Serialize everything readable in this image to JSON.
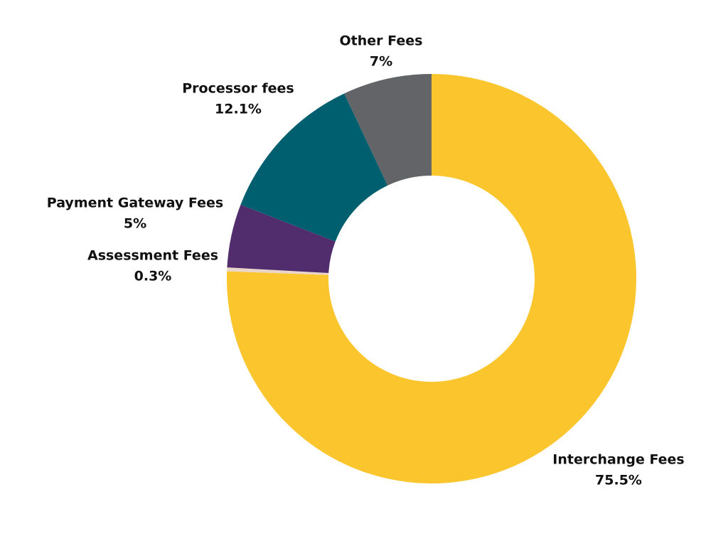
{
  "chart_data": {
    "type": "donut",
    "categories": [
      "Interchange Fees",
      "Assessment Fees",
      "Payment Gateway Fees",
      "Processor fees",
      "Other Fees"
    ],
    "values": [
      75.5,
      0.3,
      5,
      12.1,
      7
    ],
    "value_labels": [
      "75.5%",
      "0.3%",
      "5%",
      "12.1%",
      "7%"
    ],
    "colors": [
      "#fbc62d",
      "#e9d6c9",
      "#512d6d",
      "#005f6e",
      "#636467"
    ]
  }
}
